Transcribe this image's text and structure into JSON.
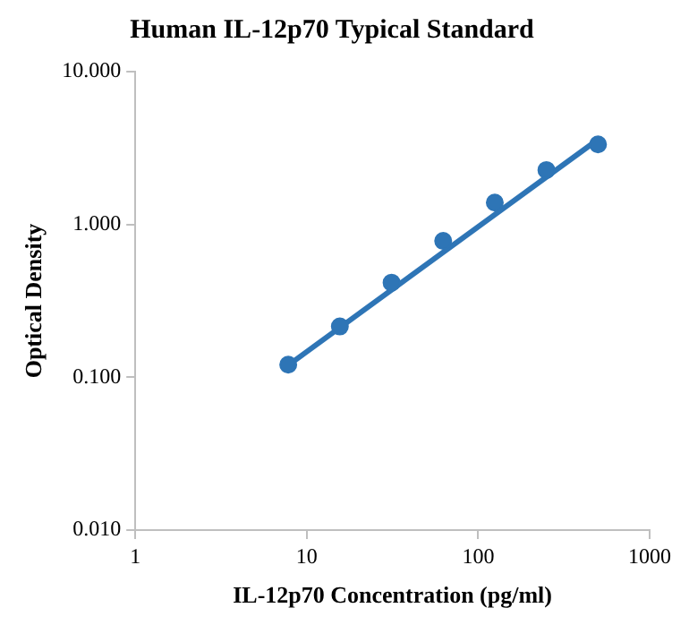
{
  "chart_data": {
    "type": "scatter",
    "title": "Human IL-12p70 Typical Standard",
    "xlabel": "IL-12p70 Concentration (pg/ml)",
    "ylabel": "Optical Density",
    "log": "xy",
    "grid": false,
    "legend": false,
    "xlim": [
      1,
      1000
    ],
    "xticks": [
      1,
      10,
      100,
      1000
    ],
    "ylim": [
      0.01,
      10
    ],
    "yticks": [
      {
        "value": 0.01,
        "label": "0.010"
      },
      {
        "value": 0.1,
        "label": "0.100"
      },
      {
        "value": 1,
        "label": "1.000"
      },
      {
        "value": 10,
        "label": "10.000"
      }
    ],
    "series": [
      {
        "color": "#2e75b6",
        "marker": "circle",
        "x": [
          7.8,
          15.6,
          31.25,
          62.5,
          125,
          250,
          500
        ],
        "values": [
          0.121,
          0.215,
          0.416,
          0.78,
          1.39,
          2.27,
          3.34
        ]
      },
      {
        "type": "line",
        "color": "#2e75b6",
        "marker": "none",
        "line_style": "solid",
        "x": [
          7.8,
          500
        ],
        "values": [
          0.12,
          3.6
        ]
      }
    ]
  }
}
